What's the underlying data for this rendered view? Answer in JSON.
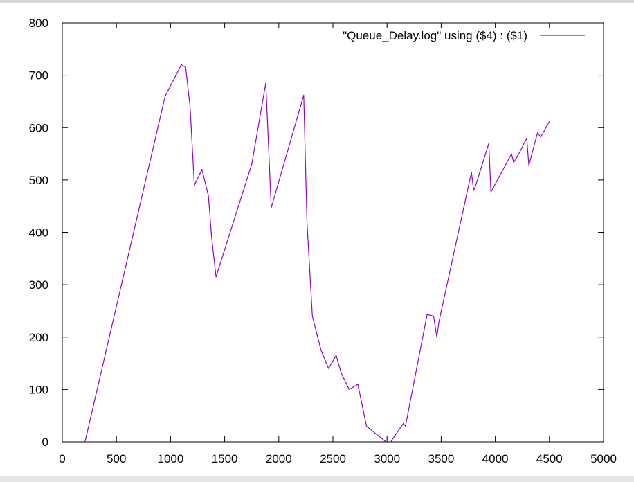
{
  "chart_data": {
    "type": "line",
    "xlim": [
      0,
      5000
    ],
    "ylim": [
      0,
      800
    ],
    "xticks": [
      0,
      500,
      1000,
      1500,
      2000,
      2500,
      3000,
      3500,
      4000,
      4500,
      5000
    ],
    "yticks": [
      0,
      100,
      200,
      300,
      400,
      500,
      600,
      700,
      800
    ],
    "grid": false,
    "legend_position": "top-right",
    "series": [
      {
        "name": "\"Queue_Delay.log\" using ($4) : ($1)",
        "color": "#9400d3",
        "x": [
          210,
          950,
          1100,
          1140,
          1180,
          1220,
          1290,
          1350,
          1380,
          1420,
          1750,
          1880,
          1930,
          2230,
          2260,
          2310,
          2390,
          2460,
          2530,
          2550,
          2580,
          2650,
          2730,
          2760,
          2810,
          2990,
          3020,
          3050,
          3150,
          3170,
          3370,
          3430,
          3460,
          3480,
          3780,
          3800,
          3820,
          3940,
          3960,
          4150,
          4170,
          4230,
          4290,
          4310,
          4390,
          4420,
          4500
        ],
        "y": [
          0,
          660,
          720,
          715,
          640,
          490,
          520,
          470,
          390,
          315,
          530,
          685,
          447,
          662,
          420,
          240,
          175,
          140,
          165,
          150,
          130,
          100,
          110,
          80,
          30,
          0,
          -5,
          5,
          35,
          30,
          243,
          240,
          200,
          230,
          515,
          480,
          490,
          570,
          477,
          550,
          533,
          555,
          580,
          528,
          590,
          582,
          612
        ]
      }
    ]
  }
}
